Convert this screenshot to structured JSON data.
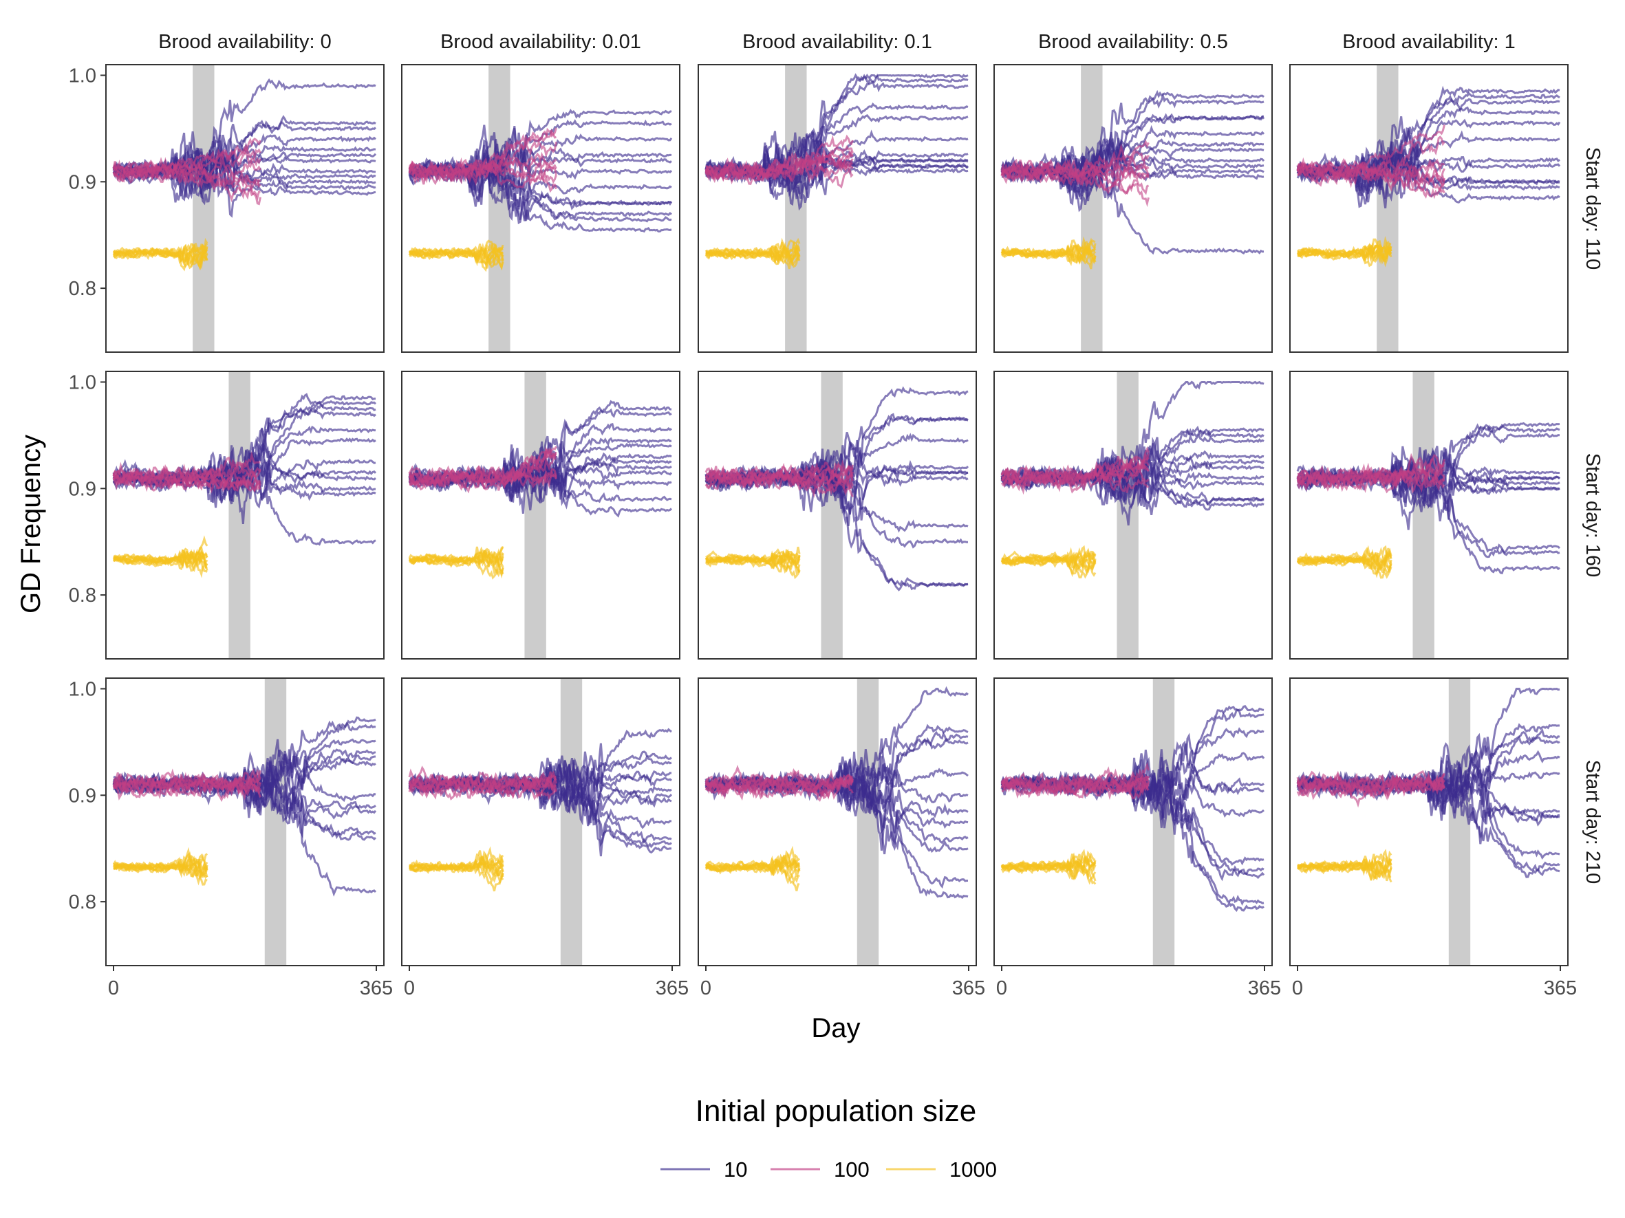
{
  "chart_data": {
    "type": "line",
    "layout": "faceted grid",
    "column_facet_labels": [
      "Brood availability: 0",
      "Brood availability: 0.01",
      "Brood availability: 0.1",
      "Brood availability: 0.5",
      "Brood availability: 1"
    ],
    "row_facet_labels": [
      "Start day: 110",
      "Start day: 160",
      "Start day: 210"
    ],
    "xlabel": "Day",
    "ylabel": "GD Frequency",
    "xlim": [
      0,
      365
    ],
    "ylim": [
      0.74,
      1.01
    ],
    "x_ticks": [
      0,
      365
    ],
    "x_tick_labels": [
      "0",
      "365"
    ],
    "y_ticks": [
      0.8,
      0.9,
      1.0
    ],
    "y_tick_labels": [
      "0.8",
      "0.9",
      "1.0"
    ],
    "grid": false,
    "legend": {
      "title": "Initial population size",
      "position": "bottom",
      "entries": [
        {
          "label": "10",
          "color": "#3b2c8e"
        },
        {
          "label": "100",
          "color": "#c23f84"
        },
        {
          "label": "1000",
          "color": "#f5c21e"
        }
      ]
    },
    "series_groups": [
      {
        "name": "10",
        "start_value": 0.91,
        "runs_per_panel": 12,
        "run_length_days": 365
      },
      {
        "name": "100",
        "start_value": 0.91,
        "runs_per_panel": 8,
        "run_length_days": 205
      },
      {
        "name": "1000",
        "start_value": 0.833,
        "runs_per_panel": 10,
        "run_length_days": 130
      }
    ],
    "shaded_intervals": [
      {
        "row": "Start day: 110",
        "x": [
          110,
          140
        ]
      },
      {
        "row": "Start day: 160",
        "x": [
          160,
          190
        ]
      },
      {
        "row": "Start day: 210",
        "x": [
          210,
          240
        ]
      }
    ],
    "shade_color": "#cccccc",
    "panel_final_values_pop10": [
      [
        0.99,
        0.955,
        0.95,
        0.94,
        0.93,
        0.925,
        0.92,
        0.91,
        0.905,
        0.9,
        0.895,
        0.89
      ],
      [
        0.965,
        0.955,
        0.94,
        0.925,
        0.92,
        0.91,
        0.895,
        0.88,
        0.88,
        0.87,
        0.865,
        0.855
      ],
      [
        1.0,
        0.995,
        0.99,
        0.97,
        0.96,
        0.94,
        0.925,
        0.92,
        0.92,
        0.915,
        0.915,
        0.91
      ],
      [
        0.98,
        0.975,
        0.96,
        0.96,
        0.945,
        0.935,
        0.93,
        0.92,
        0.915,
        0.91,
        0.905,
        0.835
      ],
      [
        0.985,
        0.98,
        0.975,
        0.965,
        0.955,
        0.94,
        0.92,
        0.915,
        0.9,
        0.9,
        0.895,
        0.885
      ],
      [
        0.985,
        0.98,
        0.975,
        0.97,
        0.955,
        0.945,
        0.925,
        0.915,
        0.91,
        0.9,
        0.895,
        0.85
      ],
      [
        0.975,
        0.97,
        0.955,
        0.945,
        0.94,
        0.93,
        0.925,
        0.92,
        0.915,
        0.905,
        0.89,
        0.88
      ],
      [
        0.99,
        0.965,
        0.965,
        0.945,
        0.92,
        0.915,
        0.915,
        0.91,
        0.865,
        0.85,
        0.81,
        0.81
      ],
      [
        1.0,
        0.955,
        0.95,
        0.945,
        0.93,
        0.925,
        0.92,
        0.91,
        0.905,
        0.89,
        0.89,
        0.885
      ],
      [
        0.96,
        0.955,
        0.95,
        0.915,
        0.91,
        0.91,
        0.905,
        0.9,
        0.9,
        0.845,
        0.84,
        0.825
      ],
      [
        0.97,
        0.965,
        0.95,
        0.94,
        0.935,
        0.93,
        0.9,
        0.89,
        0.885,
        0.865,
        0.86,
        0.81
      ],
      [
        0.96,
        0.935,
        0.93,
        0.92,
        0.915,
        0.905,
        0.9,
        0.895,
        0.875,
        0.86,
        0.855,
        0.85
      ],
      [
        0.995,
        0.96,
        0.955,
        0.95,
        0.92,
        0.9,
        0.885,
        0.875,
        0.86,
        0.85,
        0.82,
        0.805
      ],
      [
        0.98,
        0.975,
        0.96,
        0.935,
        0.91,
        0.905,
        0.885,
        0.84,
        0.83,
        0.825,
        0.8,
        0.795
      ],
      [
        1.0,
        0.965,
        0.955,
        0.95,
        0.935,
        0.92,
        0.885,
        0.88,
        0.88,
        0.845,
        0.835,
        0.83
      ]
    ]
  }
}
